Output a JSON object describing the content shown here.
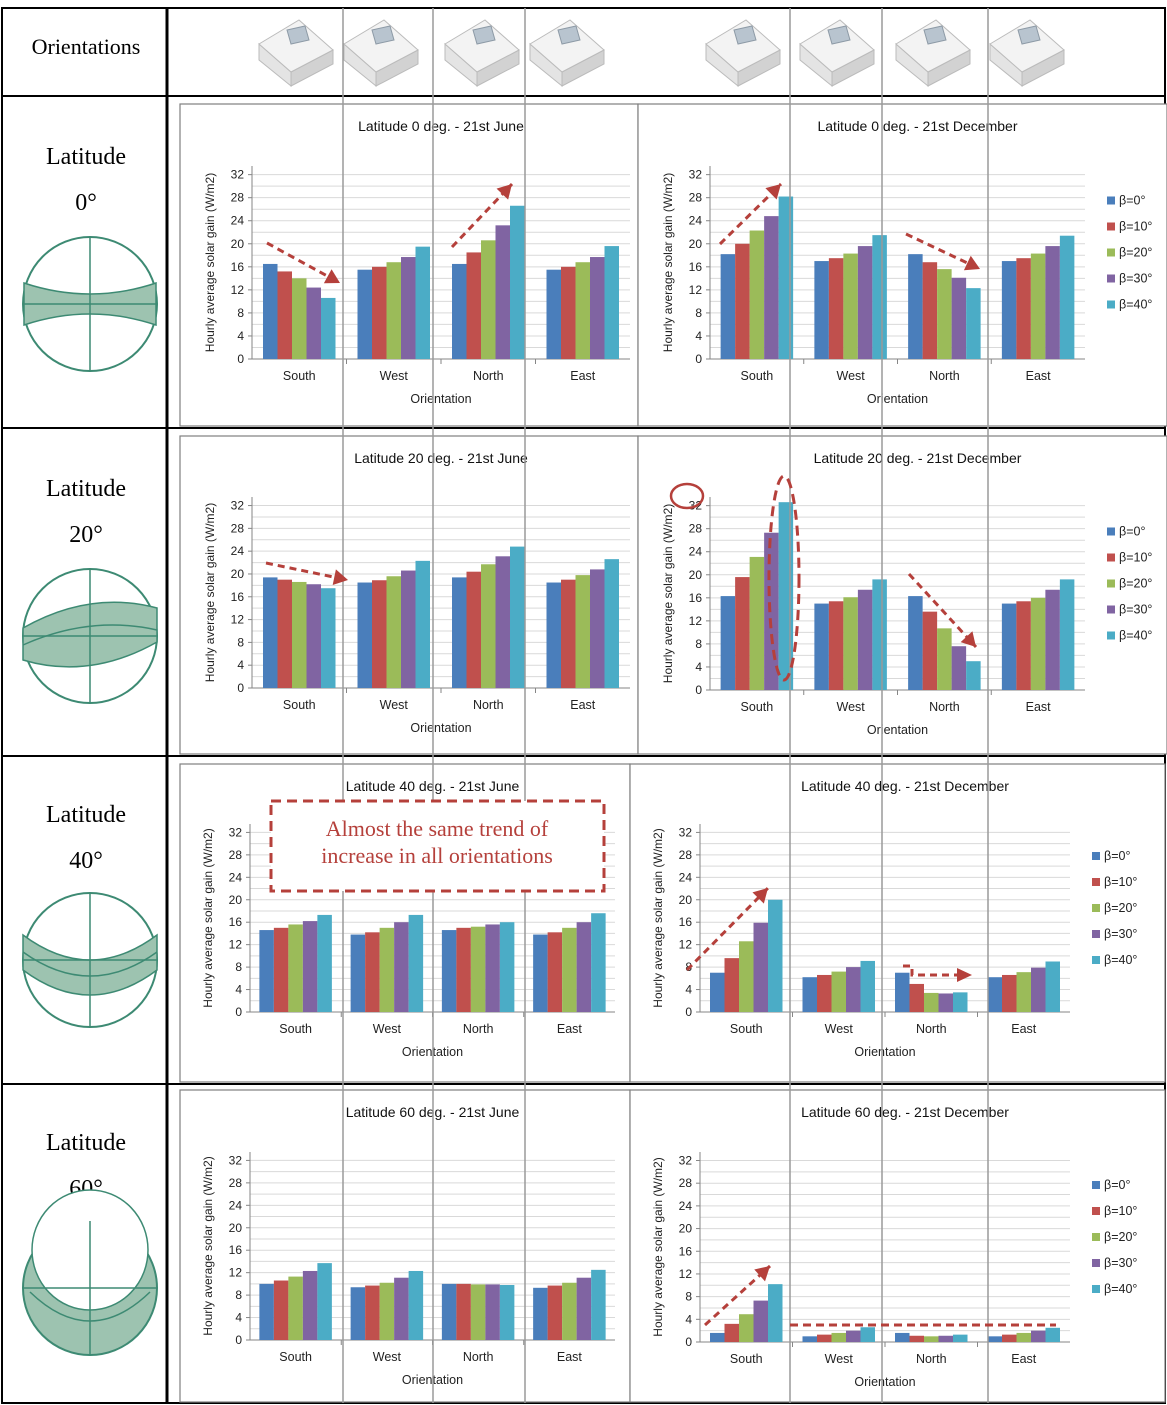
{
  "header": {
    "orientations_label": "Orientations"
  },
  "rows": [
    {
      "latitude_label": "Latitude",
      "latitude_value": "0°"
    },
    {
      "latitude_label": "Latitude",
      "latitude_value": "20°"
    },
    {
      "latitude_label": "Latitude",
      "latitude_value": "40°"
    },
    {
      "latitude_label": "Latitude",
      "latitude_value": "60°"
    }
  ],
  "annotation_box_text": [
    "Almost the same trend of",
    "increase in all orientations"
  ],
  "colors": {
    "beta0": "#4a7ebb",
    "beta10": "#c0504d",
    "beta20": "#9bbb59",
    "beta30": "#8064a2",
    "beta40": "#4bacc6",
    "annotation": "#b5403b",
    "diagram_fill": "#9dc3b0",
    "diagram_stroke": "#3d8a73"
  },
  "chart_data": [
    {
      "type": "bar",
      "title": "Latitude 0 deg. - 21st June",
      "xlabel": "Orientation",
      "ylabel": "Hourly average solar gain (W/m2)",
      "ylim": [
        0,
        34
      ],
      "yticks": [
        0,
        4,
        8,
        12,
        16,
        20,
        24,
        28,
        32
      ],
      "categories": [
        "South",
        "West",
        "North",
        "East"
      ],
      "legend": "",
      "series": [
        {
          "name": "β=0°",
          "values": [
            16.5,
            15.5,
            16.5,
            15.5
          ]
        },
        {
          "name": "β=10°",
          "values": [
            15.2,
            16.0,
            18.5,
            16.0
          ]
        },
        {
          "name": "β=20°",
          "values": [
            14.0,
            16.8,
            20.6,
            16.8
          ]
        },
        {
          "name": "β=30°",
          "values": [
            12.4,
            17.7,
            23.2,
            17.7
          ]
        },
        {
          "name": "β=40°",
          "values": [
            10.6,
            19.5,
            26.6,
            19.6
          ]
        }
      ]
    },
    {
      "type": "bar",
      "title": "Latitude 0 deg. - 21st December",
      "xlabel": "Orientation",
      "ylabel": "Hourly average solar gain (W/m2)",
      "ylim": [
        0,
        34
      ],
      "yticks": [
        0,
        4,
        8,
        12,
        16,
        20,
        24,
        28,
        32
      ],
      "categories": [
        "South",
        "West",
        "North",
        "East"
      ],
      "legend": "right",
      "series": [
        {
          "name": "β=0°",
          "values": [
            18.2,
            17.0,
            18.2,
            17.0
          ]
        },
        {
          "name": "β=10°",
          "values": [
            20.0,
            17.5,
            16.8,
            17.5
          ]
        },
        {
          "name": "β=20°",
          "values": [
            22.3,
            18.3,
            15.6,
            18.3
          ]
        },
        {
          "name": "β=30°",
          "values": [
            24.8,
            19.6,
            14.1,
            19.6
          ]
        },
        {
          "name": "β=40°",
          "values": [
            28.2,
            21.5,
            12.3,
            21.4
          ]
        }
      ]
    },
    {
      "type": "bar",
      "title": "Latitude 20 deg. - 21st June",
      "xlabel": "Orientation",
      "ylabel": "Hourly average solar gain (W/m2)",
      "ylim": [
        0,
        34
      ],
      "yticks": [
        0,
        4,
        8,
        12,
        16,
        20,
        24,
        28,
        32
      ],
      "categories": [
        "South",
        "West",
        "North",
        "East"
      ],
      "legend": "",
      "series": [
        {
          "name": "β=0°",
          "values": [
            19.4,
            18.5,
            19.4,
            18.5
          ]
        },
        {
          "name": "β=10°",
          "values": [
            19.0,
            18.9,
            20.4,
            19.0
          ]
        },
        {
          "name": "β=20°",
          "values": [
            18.6,
            19.6,
            21.7,
            19.8
          ]
        },
        {
          "name": "β=30°",
          "values": [
            18.2,
            20.6,
            23.1,
            20.8
          ]
        },
        {
          "name": "β=40°",
          "values": [
            17.5,
            22.3,
            24.8,
            22.6
          ]
        }
      ]
    },
    {
      "type": "bar",
      "title": "Latitude 20 deg. - 21st December",
      "xlabel": "Orientation",
      "ylabel": "Hourly average solar gain (W/m2)",
      "ylim": [
        0,
        34
      ],
      "yticks": [
        0,
        4,
        8,
        12,
        16,
        20,
        24,
        28,
        32
      ],
      "categories": [
        "South",
        "West",
        "North",
        "East"
      ],
      "legend": "right",
      "series": [
        {
          "name": "β=0°",
          "values": [
            16.3,
            15.0,
            16.3,
            15.0
          ]
        },
        {
          "name": "β=10°",
          "values": [
            19.6,
            15.4,
            13.6,
            15.4
          ]
        },
        {
          "name": "β=20°",
          "values": [
            23.1,
            16.1,
            10.7,
            16.0
          ]
        },
        {
          "name": "β=30°",
          "values": [
            27.3,
            17.4,
            7.6,
            17.4
          ]
        },
        {
          "name": "β=40°",
          "values": [
            32.6,
            19.2,
            5.0,
            19.2
          ]
        }
      ]
    },
    {
      "type": "bar",
      "title": "Latitude 40 deg. - 21st June",
      "xlabel": "Orientation",
      "ylabel": "Hourly average solar gain (W/m2)",
      "ylim": [
        0,
        34
      ],
      "yticks": [
        0,
        4,
        8,
        12,
        16,
        20,
        24,
        28,
        32
      ],
      "categories": [
        "South",
        "West",
        "North",
        "East"
      ],
      "legend": "",
      "series": [
        {
          "name": "β=0°",
          "values": [
            14.6,
            13.8,
            14.6,
            13.8
          ]
        },
        {
          "name": "β=10°",
          "values": [
            15.0,
            14.2,
            15.0,
            14.2
          ]
        },
        {
          "name": "β=20°",
          "values": [
            15.6,
            15.0,
            15.2,
            15.0
          ]
        },
        {
          "name": "β=30°",
          "values": [
            16.2,
            16.0,
            15.6,
            16.0
          ]
        },
        {
          "name": "β=40°",
          "values": [
            17.3,
            17.3,
            16.0,
            17.6
          ]
        }
      ]
    },
    {
      "type": "bar",
      "title": "Latitude 40 deg. - 21st December",
      "xlabel": "Orientation",
      "ylabel": "Hourly average solar gain (W/m2)",
      "ylim": [
        0,
        34
      ],
      "yticks": [
        0,
        4,
        8,
        12,
        16,
        20,
        24,
        28,
        32
      ],
      "categories": [
        "South",
        "West",
        "North",
        "East"
      ],
      "legend": "right",
      "series": [
        {
          "name": "β=0°",
          "values": [
            7.0,
            6.2,
            7.0,
            6.2
          ]
        },
        {
          "name": "β=10°",
          "values": [
            9.6,
            6.6,
            5.0,
            6.6
          ]
        },
        {
          "name": "β=20°",
          "values": [
            12.6,
            7.2,
            3.4,
            7.1
          ]
        },
        {
          "name": "β=30°",
          "values": [
            15.9,
            8.0,
            3.3,
            7.9
          ]
        },
        {
          "name": "β=40°",
          "values": [
            20.0,
            9.1,
            3.5,
            9.0
          ]
        }
      ]
    },
    {
      "type": "bar",
      "title": "Latitude 60 deg. - 21st June",
      "xlabel": "Orientation",
      "ylabel": "Hourly average solar gain (W/m2)",
      "ylim": [
        0,
        34
      ],
      "yticks": [
        0,
        4,
        8,
        12,
        16,
        20,
        24,
        28,
        32
      ],
      "categories": [
        "South",
        "West",
        "North",
        "East"
      ],
      "legend": "",
      "series": [
        {
          "name": "β=0°",
          "values": [
            10.0,
            9.4,
            10.0,
            9.3
          ]
        },
        {
          "name": "β=10°",
          "values": [
            10.6,
            9.7,
            10.0,
            9.7
          ]
        },
        {
          "name": "β=20°",
          "values": [
            11.3,
            10.2,
            9.9,
            10.2
          ]
        },
        {
          "name": "β=30°",
          "values": [
            12.3,
            11.1,
            9.9,
            11.1
          ]
        },
        {
          "name": "β=40°",
          "values": [
            13.7,
            12.3,
            9.8,
            12.5
          ]
        }
      ]
    },
    {
      "type": "bar",
      "title": "Latitude 60 deg. - 21st December",
      "xlabel": "Orientation",
      "ylabel": "Hourly average solar gain (W/m2)",
      "ylim": [
        0,
        34
      ],
      "yticks": [
        0,
        4,
        8,
        12,
        16,
        20,
        24,
        28,
        32
      ],
      "categories": [
        "South",
        "West",
        "North",
        "East"
      ],
      "legend": "right",
      "series": [
        {
          "name": "β=0°",
          "values": [
            1.6,
            1.0,
            1.6,
            1.0
          ]
        },
        {
          "name": "β=10°",
          "values": [
            3.2,
            1.3,
            1.1,
            1.3
          ]
        },
        {
          "name": "β=20°",
          "values": [
            4.9,
            1.6,
            1.0,
            1.6
          ]
        },
        {
          "name": "β=30°",
          "values": [
            7.3,
            2.0,
            1.1,
            2.0
          ]
        },
        {
          "name": "β=40°",
          "values": [
            10.2,
            2.6,
            1.3,
            2.5
          ]
        }
      ]
    }
  ]
}
